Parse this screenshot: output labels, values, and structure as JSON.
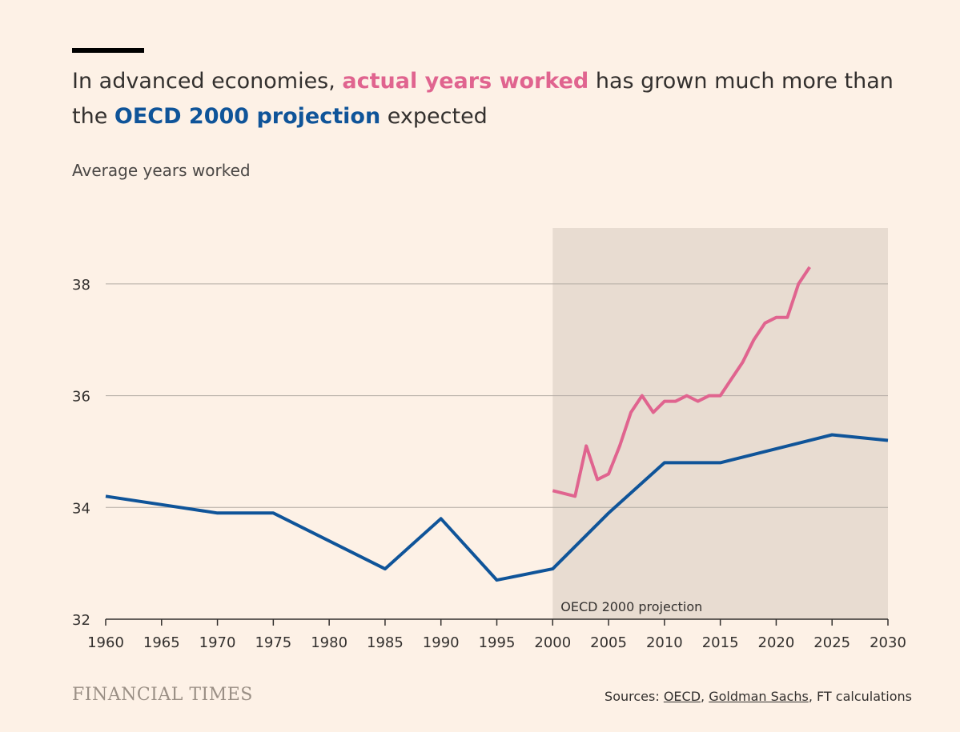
{
  "title": {
    "part1": "In advanced economies, ",
    "highlight1": "actual years worked",
    "part2": " has grown much more than the ",
    "highlight2": "OECD 2000 projection",
    "part3": " expected"
  },
  "subtitle": "Average years worked",
  "branding": {
    "logo_text": "FINANCIAL TIMES"
  },
  "source": {
    "prefix": "Sources: ",
    "link1": "OECD",
    "sep": ", ",
    "link2": "Goldman Sachs",
    "suffix": ", FT calculations"
  },
  "colors": {
    "background": "#fdf1e6",
    "shade": "#e8dcd1",
    "actual": "#e0648f",
    "projection": "#0f5499",
    "grid": "#b3aba4",
    "axis": "#33302e"
  },
  "chart_data": {
    "type": "line",
    "title": "In advanced economies, actual years worked has grown much more than the OECD 2000 projection expected",
    "ylabel": "Average years worked",
    "xlabel": "",
    "xlim": [
      1960,
      2030
    ],
    "ylim": [
      32,
      39
    ],
    "x_ticks": [
      1960,
      1965,
      1970,
      1975,
      1980,
      1985,
      1990,
      1995,
      2000,
      2005,
      2010,
      2015,
      2020,
      2025,
      2030
    ],
    "y_ticks": [
      32,
      34,
      36,
      38
    ],
    "shaded_region": {
      "x_start": 2000,
      "x_end": 2030,
      "label": "OECD 2000 projection"
    },
    "series": [
      {
        "name": "OECD 2000 projection",
        "color": "#0f5499",
        "x": [
          1960,
          1970,
          1975,
          1985,
          1990,
          1995,
          2000,
          2005,
          2010,
          2015,
          2025,
          2030
        ],
        "y": [
          34.2,
          33.9,
          33.9,
          32.9,
          33.8,
          32.7,
          32.9,
          33.9,
          34.8,
          34.8,
          35.3,
          35.2
        ]
      },
      {
        "name": "actual years worked",
        "color": "#e0648f",
        "x": [
          2000,
          2002,
          2003,
          2004,
          2005,
          2006,
          2007,
          2008,
          2009,
          2010,
          2011,
          2012,
          2013,
          2014,
          2015,
          2016,
          2017,
          2018,
          2019,
          2020,
          2021,
          2022,
          2023
        ],
        "y": [
          34.3,
          34.2,
          35.1,
          34.5,
          34.6,
          35.1,
          35.7,
          36.0,
          35.7,
          35.9,
          35.9,
          36.0,
          35.9,
          36.0,
          36.0,
          36.3,
          36.6,
          37.0,
          37.3,
          37.4,
          37.4,
          38.0,
          38.3
        ]
      }
    ]
  }
}
